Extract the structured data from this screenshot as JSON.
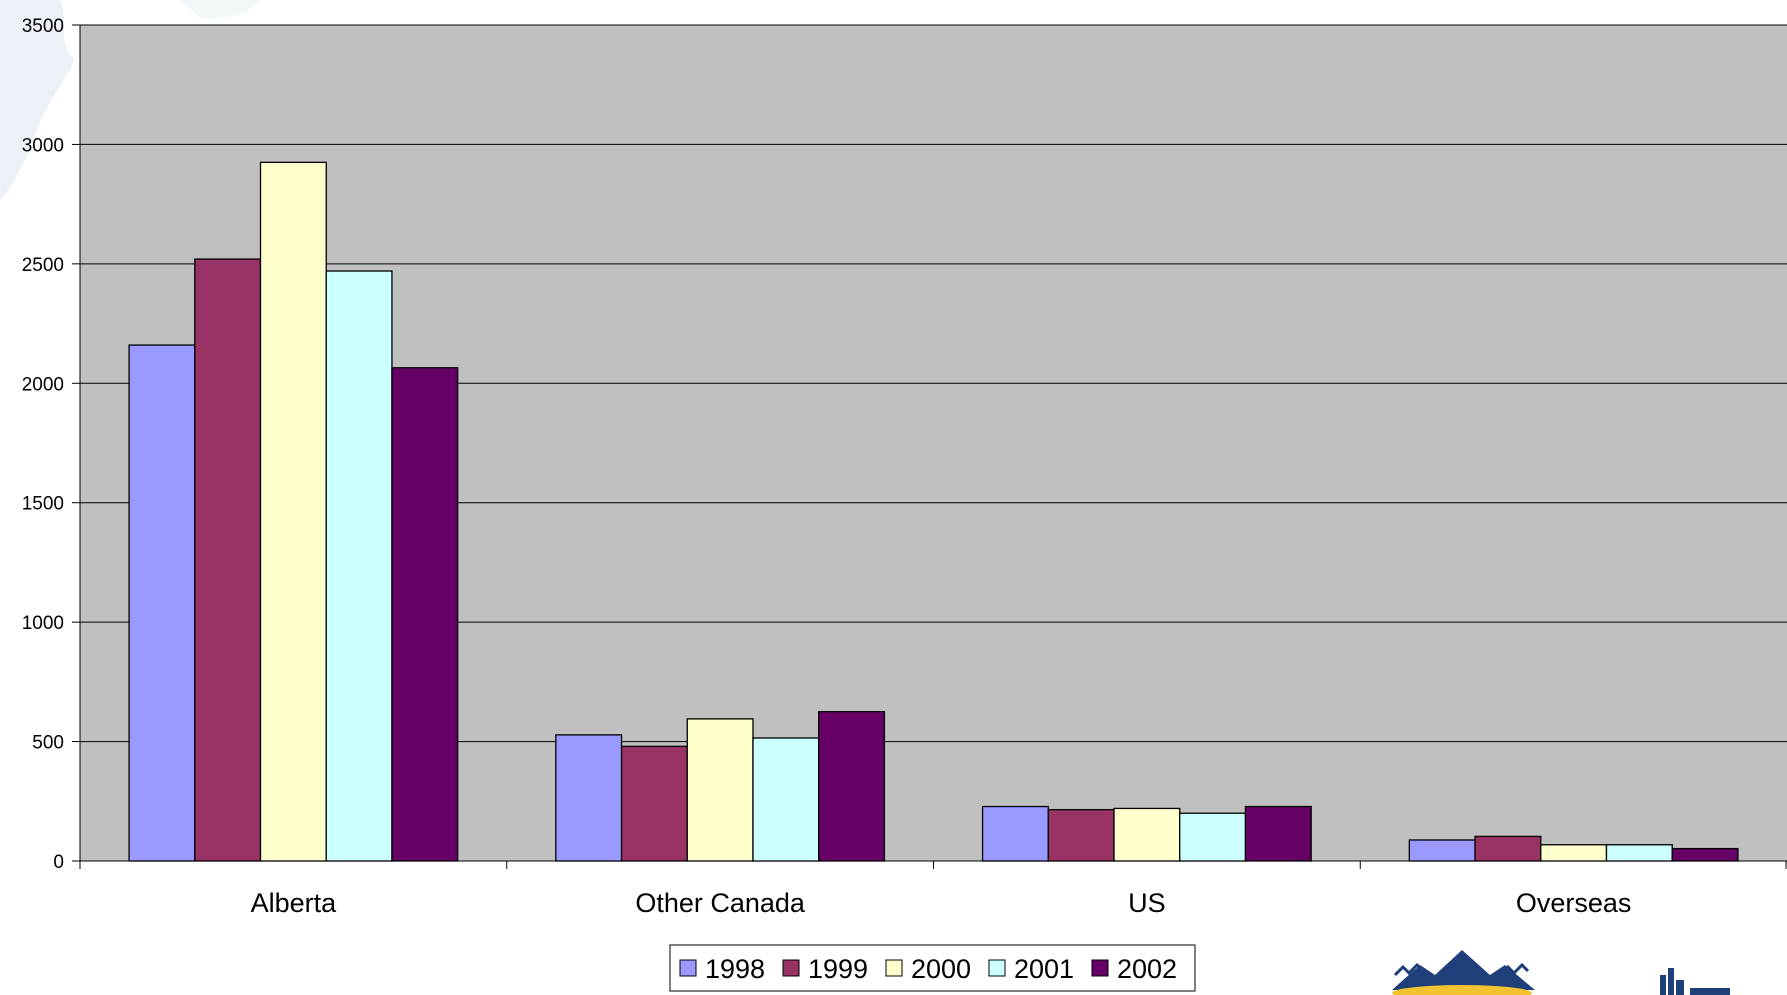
{
  "chart_data": {
    "type": "bar",
    "categories": [
      "Alberta",
      "Other Canada",
      "US",
      "Overseas"
    ],
    "series": [
      {
        "name": "1998",
        "color": "#9999FF",
        "values": [
          2160,
          528,
          228,
          88
        ]
      },
      {
        "name": "1999",
        "color": "#993366",
        "values": [
          2520,
          480,
          215,
          103
        ]
      },
      {
        "name": "2000",
        "color": "#FFFFCC",
        "values": [
          2925,
          595,
          220,
          68
        ]
      },
      {
        "name": "2001",
        "color": "#CCFFFF",
        "values": [
          2470,
          515,
          200,
          68
        ]
      },
      {
        "name": "2002",
        "color": "#660066",
        "values": [
          2065,
          625,
          228,
          52
        ]
      }
    ],
    "ylim": [
      0,
      3500
    ],
    "yticks": [
      "0",
      "500",
      "1000",
      "1500",
      "2000",
      "2500",
      "3000",
      "3500"
    ],
    "grid": true,
    "plot_background": "#C0C0C0",
    "legend_position": "bottom-center",
    "title": "",
    "xlabel": "",
    "ylabel": ""
  },
  "decor": {
    "logo_left_icon": "mountain-logo-icon",
    "logo_right_icon": "building-logo-icon"
  }
}
